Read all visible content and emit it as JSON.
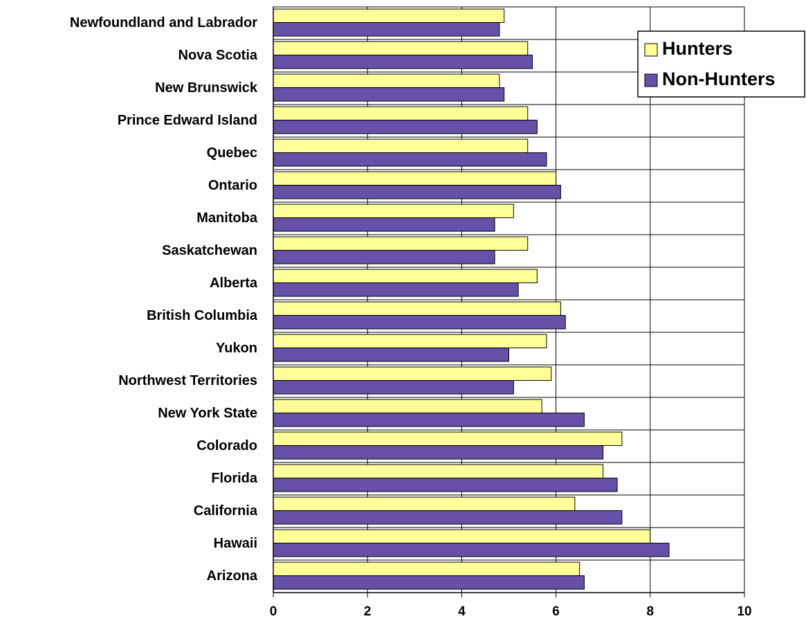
{
  "chart_data": {
    "type": "bar",
    "orientation": "horizontal",
    "categories": [
      "Newfoundland and Labrador",
      "Nova Scotia",
      "New Brunswick",
      "Prince Edward Island",
      "Quebec",
      "Ontario",
      "Manitoba",
      "Saskatchewan",
      "Alberta",
      "British Columbia",
      "Yukon",
      "Northwest Territories",
      "New York State",
      "Colorado",
      "Florida",
      "California",
      "Hawaii",
      "Arizona"
    ],
    "series": [
      {
        "name": "Hunters",
        "color": "#ffff99",
        "values": [
          4.9,
          5.4,
          4.8,
          5.4,
          5.4,
          6.0,
          5.1,
          5.4,
          5.6,
          6.1,
          5.8,
          5.9,
          5.7,
          7.4,
          7.0,
          6.4,
          8.0,
          6.5
        ]
      },
      {
        "name": "Non-Hunters",
        "color": "#6650a8",
        "values": [
          4.8,
          5.5,
          4.9,
          5.6,
          5.8,
          6.1,
          4.7,
          4.7,
          5.2,
          6.2,
          5.0,
          5.1,
          6.6,
          7.0,
          7.3,
          7.4,
          8.4,
          6.6
        ]
      }
    ],
    "xlim": [
      0,
      10
    ],
    "xticks": [
      0,
      2,
      4,
      6,
      8,
      10
    ],
    "grid": true,
    "legend": "upper right"
  }
}
